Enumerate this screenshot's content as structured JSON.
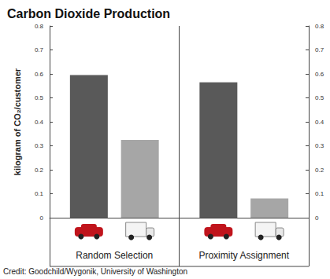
{
  "chart_data": {
    "type": "bar",
    "title": "Carbon Dioxide Production",
    "y_label": "kilogram of CO₂/customer",
    "categories": [
      "Random Selection",
      "Proximity Assignment"
    ],
    "series": [
      {
        "color": "#595959",
        "values": [
          0.595,
          0.565
        ]
      },
      {
        "color": "#a6a6a6",
        "values": [
          0.325,
          0.08
        ]
      }
    ],
    "ylim": [
      0,
      0.8
    ],
    "yticks": [
      0,
      0.1,
      0.2,
      0.3,
      0.4,
      0.5,
      0.6,
      0.7,
      0.8
    ],
    "y2lim": [
      0,
      0.8
    ],
    "y2ticks": [
      0,
      0.1,
      0.2,
      0.3,
      0.4,
      0.5,
      0.6,
      0.7,
      0.8
    ],
    "grid": false,
    "annotations": [
      "Credit: Goodchild/Wygonik, University of Washington"
    ]
  }
}
